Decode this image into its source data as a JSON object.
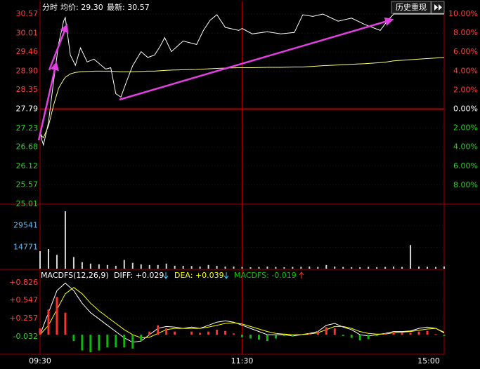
{
  "toolbar": {
    "button": "历史重现"
  },
  "chart_data": [
    {
      "type": "line",
      "title": "分时",
      "annotations": [
        "均价: 29.30",
        "最新: 30.57"
      ],
      "xlim": [
        0,
        240
      ],
      "x": [
        0,
        1,
        2,
        5,
        8,
        11,
        14,
        15,
        18,
        21,
        24,
        28,
        32,
        39,
        42,
        45,
        48,
        51,
        55,
        60,
        64,
        68,
        71,
        74,
        78,
        85,
        93,
        97,
        101,
        105,
        110,
        118,
        120,
        126,
        135,
        143,
        151,
        156,
        162,
        168,
        177,
        185,
        193,
        202,
        206,
        210,
        225,
        240
      ],
      "series": [
        {
          "color": "#ffffff",
          "values": [
            27.11,
            26.9,
            26.74,
            27.4,
            28.6,
            29.7,
            30.36,
            30.47,
            29.37,
            29.07,
            29.58,
            29.17,
            29.25,
            28.96,
            29.0,
            28.24,
            28.14,
            28.55,
            29.06,
            29.47,
            29.3,
            29.37,
            29.6,
            29.88,
            29.47,
            29.78,
            29.68,
            30.09,
            30.39,
            30.55,
            30.18,
            30.09,
            30.15,
            29.99,
            30.05,
            29.99,
            30.03,
            30.55,
            30.5,
            30.57,
            30.36,
            30.45,
            30.26,
            30.09,
            30.35,
            30.57,
            30.57,
            30.57
          ]
        },
        {
          "color": "#ffff80",
          "values": [
            27.11,
            27.0,
            26.95,
            27.3,
            27.9,
            28.4,
            28.65,
            28.72,
            28.82,
            28.86,
            28.88,
            28.89,
            28.9,
            28.9,
            28.9,
            28.89,
            28.88,
            28.88,
            28.88,
            28.89,
            28.9,
            28.9,
            28.91,
            28.92,
            28.93,
            28.94,
            28.95,
            28.96,
            28.97,
            28.98,
            28.99,
            29.0,
            29.0,
            29.0,
            29.01,
            29.01,
            29.02,
            29.02,
            29.04,
            29.06,
            29.08,
            29.1,
            29.12,
            29.15,
            29.17,
            29.2,
            29.25,
            29.3
          ]
        }
      ],
      "ylim": [
        25.01,
        30.57
      ],
      "yticks": [
        30.57,
        30.01,
        29.46,
        {
          "value": 28.9,
          "label": "28.90"
        },
        28.35,
        27.79,
        27.23,
        26.68,
        26.12,
        25.57,
        25.01
      ],
      "y2lim": [
        -10,
        10
      ],
      "y2ticks": [
        {
          "value": 10,
          "label": "10.00%"
        },
        {
          "value": 8,
          "label": "8.00%"
        },
        {
          "value": 6,
          "label": "6.00%"
        },
        {
          "value": 4,
          "label": "4.00%"
        },
        {
          "value": 2,
          "label": "2.00%"
        },
        {
          "value": 0,
          "label": "0.00%"
        },
        {
          "value": -2,
          "label": "2.00%"
        },
        {
          "value": -4,
          "label": "4.00%"
        },
        {
          "value": -6,
          "label": "6.00%"
        },
        {
          "value": -8,
          "label": "8.00%"
        }
      ],
      "grid": true
    },
    {
      "type": "bar",
      "xlim": [
        0,
        240
      ],
      "color": "#d8d8d8",
      "x": [
        0,
        5,
        10,
        15,
        20,
        25,
        30,
        35,
        40,
        45,
        50,
        55,
        60,
        65,
        70,
        75,
        80,
        85,
        90,
        95,
        100,
        105,
        110,
        115,
        120,
        125,
        130,
        135,
        140,
        145,
        150,
        155,
        160,
        165,
        170,
        175,
        180,
        185,
        190,
        195,
        200,
        205,
        210,
        215,
        220,
        225,
        230,
        235,
        240
      ],
      "values": [
        12000,
        13500,
        9500,
        39400,
        8000,
        4500,
        3500,
        3000,
        2500,
        2000,
        6000,
        4000,
        3000,
        2500,
        2500,
        3500,
        2000,
        2000,
        1800,
        1500,
        2500,
        2000,
        1500,
        1500,
        1200,
        1000,
        1200,
        1500,
        1200,
        1000,
        1200,
        1300,
        1500,
        1200,
        2500,
        1500,
        1200,
        1000,
        1000,
        1300,
        1000,
        1200,
        1500,
        1200,
        16250,
        1500,
        1300,
        1200,
        1500
      ],
      "ylim": [
        0,
        44312
      ],
      "yticks": [
        14771,
        29541
      ]
    },
    {
      "type": "macd",
      "title": "MACDFS(12,26,9)",
      "xlim": [
        0,
        240
      ],
      "xticks": [
        {
          "value": 0,
          "label": "09:30"
        },
        {
          "value": 120,
          "label": "11:30"
        },
        {
          "value": 240,
          "label": "15:00"
        }
      ],
      "x": [
        0,
        5,
        10,
        15,
        20,
        25,
        30,
        35,
        40,
        45,
        50,
        55,
        60,
        65,
        70,
        75,
        80,
        85,
        90,
        95,
        100,
        105,
        110,
        115,
        120,
        125,
        130,
        135,
        140,
        145,
        150,
        155,
        160,
        165,
        170,
        175,
        180,
        185,
        190,
        195,
        200,
        205,
        210,
        215,
        220,
        225,
        230,
        235,
        240
      ],
      "series": [
        {
          "name": "DIFF: +0.029",
          "color": "#ffffff",
          "values": [
            0.0,
            0.35,
            0.7,
            0.82,
            0.7,
            0.5,
            0.35,
            0.25,
            0.15,
            0.05,
            -0.05,
            -0.12,
            -0.1,
            0.0,
            0.1,
            0.13,
            0.12,
            0.1,
            0.12,
            0.1,
            0.15,
            0.2,
            0.22,
            0.2,
            0.15,
            0.1,
            0.05,
            0.0,
            0.0,
            0.0,
            -0.02,
            0.0,
            0.02,
            0.05,
            0.15,
            0.18,
            0.12,
            0.08,
            0.0,
            -0.02,
            0.0,
            0.02,
            0.05,
            0.05,
            0.06,
            0.1,
            0.12,
            0.1,
            0.029
          ]
        },
        {
          "name": "DEA: +0.039",
          "color": "#ffff00",
          "values": [
            0.0,
            0.15,
            0.4,
            0.65,
            0.75,
            0.65,
            0.5,
            0.38,
            0.28,
            0.18,
            0.08,
            0.0,
            -0.05,
            -0.04,
            0.02,
            0.08,
            0.1,
            0.1,
            0.1,
            0.1,
            0.12,
            0.15,
            0.18,
            0.19,
            0.17,
            0.13,
            0.09,
            0.05,
            0.02,
            0.01,
            0.0,
            0.0,
            0.01,
            0.03,
            0.08,
            0.13,
            0.13,
            0.1,
            0.05,
            0.02,
            0.01,
            0.01,
            0.03,
            0.04,
            0.05,
            0.07,
            0.09,
            0.1,
            0.039
          ]
        },
        {
          "name": "MACDFS: -0.019",
          "color": "#00cc00",
          "up_color": "#ff3030",
          "down_color": "#00c000",
          "values": [
            0.1,
            0.4,
            0.6,
            0.35,
            -0.1,
            -0.25,
            -0.28,
            -0.25,
            -0.2,
            -0.2,
            -0.2,
            -0.22,
            -0.1,
            0.05,
            0.15,
            0.1,
            0.05,
            0.0,
            0.05,
            0.03,
            0.05,
            0.08,
            0.06,
            0.02,
            -0.04,
            -0.06,
            -0.08,
            -0.1,
            -0.06,
            -0.02,
            -0.03,
            0.0,
            0.02,
            0.05,
            0.12,
            0.1,
            -0.02,
            -0.05,
            -0.09,
            -0.07,
            -0.02,
            0.02,
            0.04,
            0.03,
            0.03,
            0.05,
            0.06,
            0.01,
            -0.019
          ]
        }
      ],
      "ylim": [
        -0.311,
        1.027
      ],
      "yticks": [
        {
          "value": 0.826,
          "label": "+0.826"
        },
        {
          "value": 0.547,
          "label": "+0.547"
        },
        {
          "value": 0.257,
          "label": "+0.257"
        },
        -0.032
      ]
    }
  ]
}
